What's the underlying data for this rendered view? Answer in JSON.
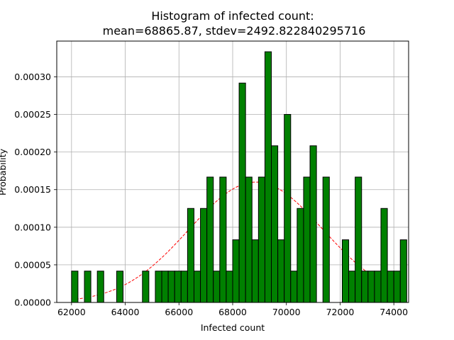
{
  "chart_data": {
    "type": "bar",
    "title_lines": [
      "Histogram of infected count:",
      "mean=68865.87, stdev=2492.822840295716"
    ],
    "xlabel": "Infected count",
    "ylabel": "Probability",
    "xlim": [
      61450,
      74550
    ],
    "ylim": [
      0,
      0.0003475
    ],
    "x_ticks": [
      62000,
      64000,
      66000,
      68000,
      70000,
      72000,
      74000
    ],
    "x_tick_labels": [
      "62000",
      "64000",
      "66000",
      "68000",
      "70000",
      "72000",
      "74000"
    ],
    "y_ticks": [
      0,
      5e-05,
      0.0001,
      0.00015,
      0.0002,
      0.00025,
      0.0003
    ],
    "y_tick_labels": [
      "0.00000",
      "0.00005",
      "0.00010",
      "0.00015",
      "0.00020",
      "0.00025",
      "0.00030"
    ],
    "grid": true,
    "bar_color": "#008000",
    "bar_edge_color": "#000000",
    "fit_color": "#ff0000",
    "bin_start": 62000,
    "bin_width": 240,
    "values": [
      4.17e-05,
      0,
      4.17e-05,
      0,
      4.17e-05,
      0,
      0,
      4.17e-05,
      0,
      0,
      0,
      4.17e-05,
      0,
      4.17e-05,
      4.17e-05,
      4.17e-05,
      4.17e-05,
      4.17e-05,
      0.000125,
      4.17e-05,
      0.000125,
      0.0001667,
      4.17e-05,
      0.0001667,
      4.17e-05,
      8.33e-05,
      0.0002917,
      0.0001667,
      8.33e-05,
      0.0001667,
      0.0003333,
      0.0002083,
      8.33e-05,
      0.00025,
      4.17e-05,
      0.000125,
      0.0001667,
      0.0002083,
      0,
      0.0001667,
      0,
      0,
      8.33e-05,
      4.17e-05,
      0.0001667,
      4.17e-05,
      4.17e-05,
      4.17e-05,
      0.000125,
      4.17e-05,
      4.17e-05,
      8.33e-05
    ],
    "fit": {
      "type": "normal",
      "mean": 68865.87,
      "stdev": 2492.822840295716,
      "x_range": [
        62000,
        74000
      ]
    }
  }
}
